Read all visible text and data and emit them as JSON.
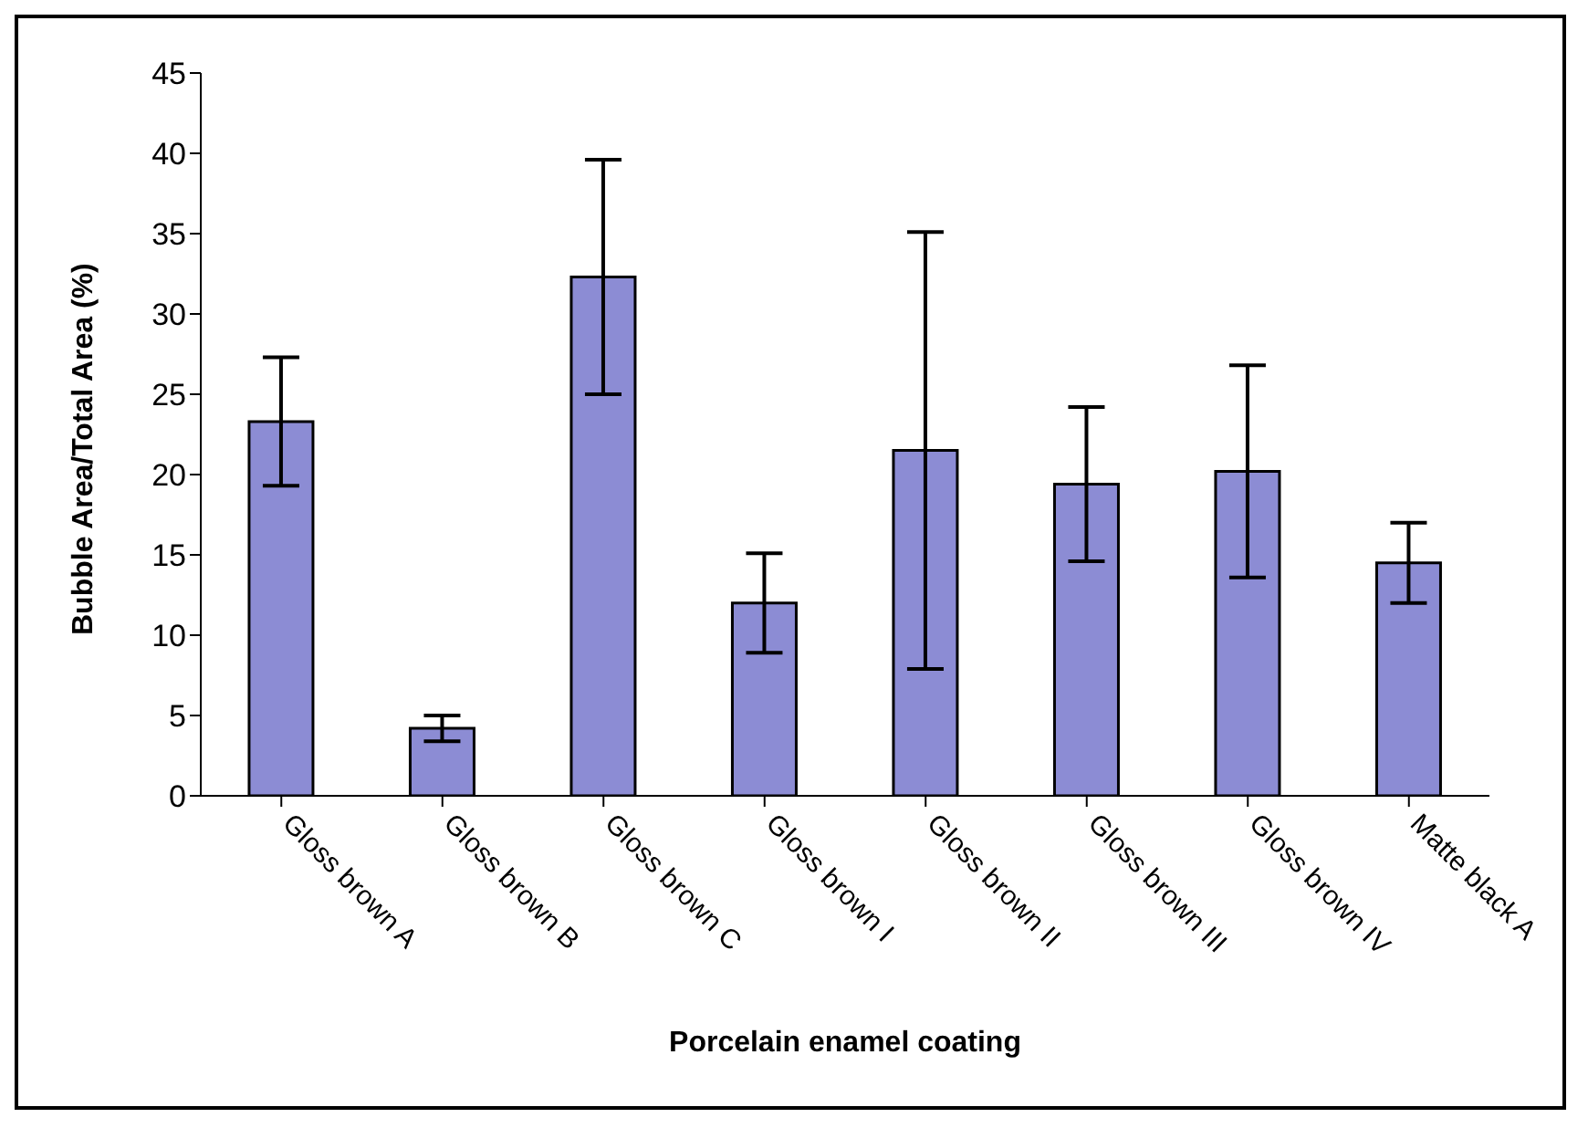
{
  "chart_data": {
    "type": "bar",
    "xlabel": "Porcelain enamel coating",
    "ylabel": "Bubble Area/Total Area (%)",
    "categories": [
      "Gloss brown A",
      "Gloss brown B",
      "Gloss brown C",
      "Gloss brown I",
      "Gloss brown II",
      "Gloss brown III",
      "Gloss brown IV",
      "Matte black A"
    ],
    "values": [
      23.3,
      4.2,
      32.3,
      12,
      21.5,
      19.4,
      20.2,
      14.5
    ],
    "errors": [
      4,
      0.8,
      7.3,
      3.1,
      13.6,
      4.8,
      6.6,
      2.5
    ],
    "color": "#8c8cd4",
    "ylim": [
      0,
      45
    ],
    "yticks": [
      0,
      5,
      10,
      15,
      20,
      25,
      30,
      35,
      40,
      45
    ],
    "grid": false,
    "legend": false
  }
}
